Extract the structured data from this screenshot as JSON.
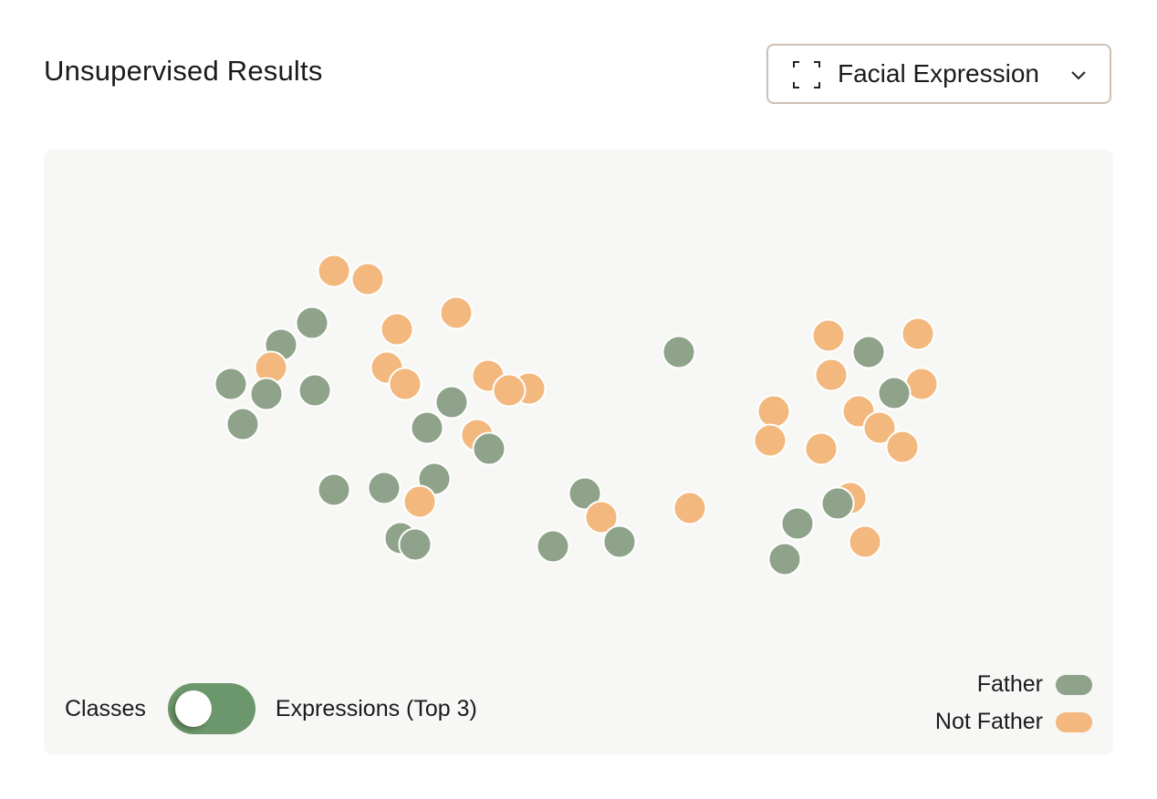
{
  "header": {
    "title": "Unsupervised Results"
  },
  "dropdown": {
    "icon": "frame-icon",
    "selected": "Facial Expression",
    "chevron": "chevron-down-icon"
  },
  "toggle": {
    "left_label": "Classes",
    "right_label": "Expressions (Top 3)",
    "state": "right"
  },
  "legend": [
    {
      "label": "Father",
      "color": "#8ea38a"
    },
    {
      "label": "Not Father",
      "color": "#f3b87e"
    }
  ],
  "chart_data": {
    "type": "scatter",
    "title": "",
    "xlabel": "",
    "ylabel": "",
    "grid": false,
    "legend_position": "bottom-right",
    "series": [
      {
        "name": "Father",
        "color": "#8ea38a",
        "points": [
          [
            342,
            354
          ],
          [
            308,
            378
          ],
          [
            253,
            421
          ],
          [
            292,
            432
          ],
          [
            345,
            428
          ],
          [
            266,
            465
          ],
          [
            495,
            441
          ],
          [
            468,
            469
          ],
          [
            536,
            492
          ],
          [
            476,
            525
          ],
          [
            366,
            537
          ],
          [
            421,
            535
          ],
          [
            455,
            597
          ],
          [
            439,
            590
          ],
          [
            641,
            541
          ],
          [
            606,
            599
          ],
          [
            679,
            594
          ],
          [
            744,
            386
          ],
          [
            952,
            386
          ],
          [
            980,
            431
          ],
          [
            918,
            552
          ],
          [
            874,
            574
          ],
          [
            860,
            613
          ]
        ]
      },
      {
        "name": "Not Father",
        "color": "#f3b87e",
        "points": [
          [
            366,
            297
          ],
          [
            403,
            306
          ],
          [
            500,
            343
          ],
          [
            435,
            361
          ],
          [
            297,
            403
          ],
          [
            424,
            403
          ],
          [
            444,
            421
          ],
          [
            535,
            412
          ],
          [
            558,
            428
          ],
          [
            580,
            426
          ],
          [
            523,
            477
          ],
          [
            460,
            550
          ],
          [
            659,
            567
          ],
          [
            756,
            557
          ],
          [
            908,
            368
          ],
          [
            1006,
            366
          ],
          [
            911,
            411
          ],
          [
            1010,
            421
          ],
          [
            848,
            451
          ],
          [
            941,
            451
          ],
          [
            964,
            469
          ],
          [
            844,
            483
          ],
          [
            900,
            492
          ],
          [
            989,
            490
          ],
          [
            932,
            546
          ],
          [
            948,
            594
          ]
        ]
      }
    ]
  }
}
